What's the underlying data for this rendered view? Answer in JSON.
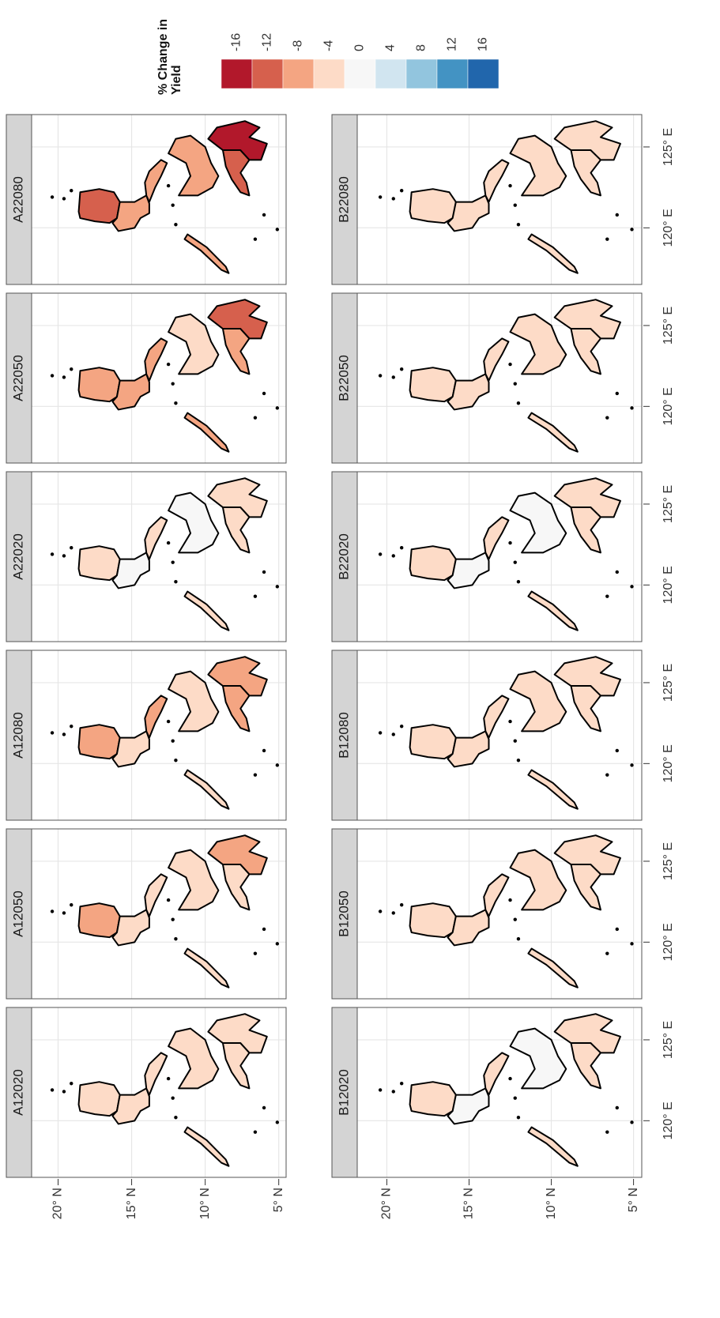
{
  "chart_data": {
    "type": "map",
    "legend": {
      "title": "% Change in Yield",
      "ticks": [
        -16,
        -12,
        -8,
        -4,
        0,
        4,
        8,
        12,
        16
      ],
      "colors": [
        "#b2182b",
        "#d6604d",
        "#f4a582",
        "#fddbc7",
        "#f7f7f7",
        "#d1e5f0",
        "#92c5de",
        "#4393c3",
        "#2166ac"
      ]
    },
    "xlim": [
      116.5,
      127
    ],
    "ylim": [
      4.5,
      21.8
    ],
    "xticks": [
      {
        "value": 120,
        "label": "120° E"
      },
      {
        "value": 125,
        "label": "125° E"
      }
    ],
    "yticks": [
      {
        "value": 5,
        "label": "5° N"
      },
      {
        "value": 10,
        "label": "10° N"
      },
      {
        "value": 15,
        "label": "15° N"
      },
      {
        "value": 20,
        "label": "20° N"
      }
    ],
    "grid": true,
    "panels": [
      {
        "title": "A12020",
        "values": [
          -3,
          -2,
          -2,
          -2,
          -3,
          -3,
          -4
        ]
      },
      {
        "title": "A12050",
        "values": [
          -7,
          -4,
          -5,
          -4,
          -5,
          -5,
          -7
        ]
      },
      {
        "title": "A12080",
        "values": [
          -9,
          -5,
          -6,
          -5,
          -5,
          -7,
          -9
        ]
      },
      {
        "title": "A22020",
        "values": [
          -2,
          -1,
          -3,
          0,
          -3,
          -3,
          -4
        ]
      },
      {
        "title": "A22050",
        "values": [
          -8,
          -6,
          -7,
          -5,
          -6,
          -8,
          -10
        ]
      },
      {
        "title": "A22080",
        "values": [
          -12,
          -7,
          -9,
          -8,
          -7,
          -11,
          -14
        ]
      },
      {
        "title": "B12020",
        "values": [
          -3,
          1,
          -2,
          -1,
          -3,
          -3,
          -3
        ]
      },
      {
        "title": "B12050",
        "values": [
          -5,
          -3,
          -4,
          -3,
          -4,
          -4,
          -5
        ]
      },
      {
        "title": "B12080",
        "values": [
          -5,
          -3,
          -5,
          -2,
          -4,
          -5,
          -5
        ]
      },
      {
        "title": "B22020",
        "values": [
          -5,
          2,
          -4,
          1,
          -3,
          -3,
          -4
        ]
      },
      {
        "title": "B22050",
        "values": [
          -5,
          -3,
          -4,
          -3,
          -4,
          -4,
          -5
        ]
      },
      {
        "title": "B22080",
        "values": [
          -5,
          -3,
          -4,
          -3,
          -4,
          -5,
          -5
        ]
      }
    ]
  }
}
